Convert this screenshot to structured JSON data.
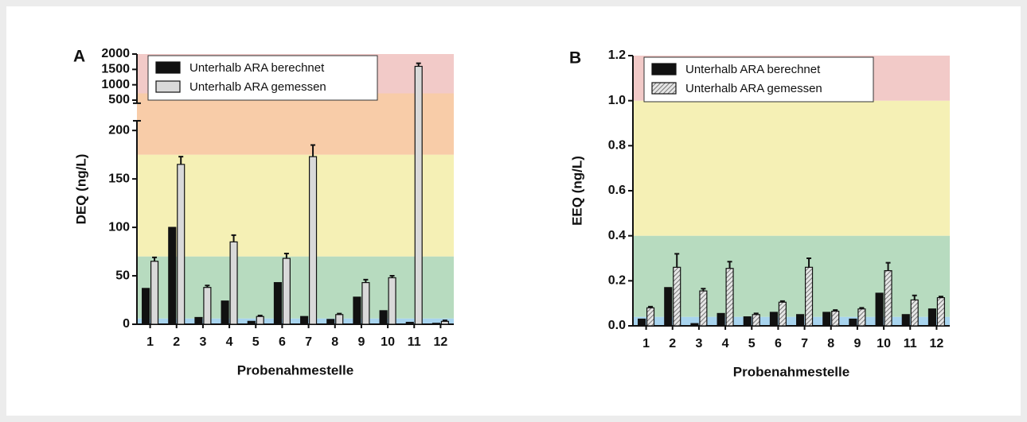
{
  "chart_data": [
    {
      "type": "bar",
      "label": "A",
      "y_label": "DEQ (ng/L)",
      "x_label": "Probenahmestelle",
      "categories": [
        "1",
        "2",
        "3",
        "4",
        "5",
        "6",
        "7",
        "8",
        "9",
        "10",
        "11",
        "12"
      ],
      "series": [
        {
          "name": "Unterhalb ARA berechnet",
          "color": "#111111",
          "values": [
            37,
            100,
            7,
            24,
            3,
            43,
            8,
            5,
            28,
            14,
            2,
            1
          ]
        },
        {
          "name": "Unterhalb ARA gemessen",
          "color": "#d9d9d9",
          "values": [
            65,
            165,
            38,
            85,
            8,
            68,
            173,
            10,
            43,
            48,
            1600,
            3
          ],
          "errors": [
            4,
            8,
            2,
            7,
            1,
            5,
            12,
            1,
            3,
            2,
            100,
            1
          ]
        }
      ],
      "ylim": [
        0,
        2000
      ],
      "ybreak": [
        210,
        400
      ],
      "yticks": [
        0,
        50,
        100,
        150,
        200,
        500,
        1000,
        1500,
        2000
      ],
      "bands": [
        {
          "from": 0,
          "to": 6,
          "color": "#a8d4ee"
        },
        {
          "from": 6,
          "to": 70,
          "color": "#b7dbbf"
        },
        {
          "from": 70,
          "to": 175,
          "color": "#f5f0b5"
        },
        {
          "from": 175,
          "to": 720,
          "color": "#f8cca8"
        },
        {
          "from": 720,
          "to": 2000,
          "color": "#f2cac8"
        }
      ],
      "legend": "upper left"
    },
    {
      "type": "bar",
      "label": "B",
      "y_label": "EEQ (ng/L)",
      "x_label": "Probenahmestelle",
      "categories": [
        "1",
        "2",
        "3",
        "4",
        "5",
        "6",
        "7",
        "8",
        "9",
        "10",
        "11",
        "12"
      ],
      "series": [
        {
          "name": "Unterhalb ARA berechnet",
          "color": "#111111",
          "values": [
            0.03,
            0.17,
            0.01,
            0.055,
            0.04,
            0.06,
            0.05,
            0.06,
            0.03,
            0.145,
            0.05,
            0.075
          ]
        },
        {
          "name": "Unterhalb ARA gemessen",
          "color": "#9a9a9a",
          "hatch": true,
          "values": [
            0.08,
            0.26,
            0.155,
            0.255,
            0.05,
            0.105,
            0.26,
            0.065,
            0.075,
            0.245,
            0.115,
            0.125
          ],
          "errors": [
            0.005,
            0.06,
            0.01,
            0.03,
            0.005,
            0.005,
            0.04,
            0.005,
            0.005,
            0.035,
            0.02,
            0.005
          ]
        }
      ],
      "ylim": [
        0,
        1.2
      ],
      "yticks": [
        {
          "value": 0,
          "label": "0.0"
        },
        0.2,
        0.4,
        0.6,
        0.8,
        {
          "value": 1,
          "label": "1.0"
        },
        1.2
      ],
      "bands": [
        {
          "from": 0,
          "to": 0.04,
          "color": "#a8d4ee"
        },
        {
          "from": 0.04,
          "to": 0.4,
          "color": "#b7dbbf"
        },
        {
          "from": 0.4,
          "to": 1,
          "color": "#f5f0b5"
        },
        {
          "from": 1,
          "to": 1.2,
          "color": "#f2cac8"
        }
      ],
      "legend": "upper left"
    }
  ]
}
